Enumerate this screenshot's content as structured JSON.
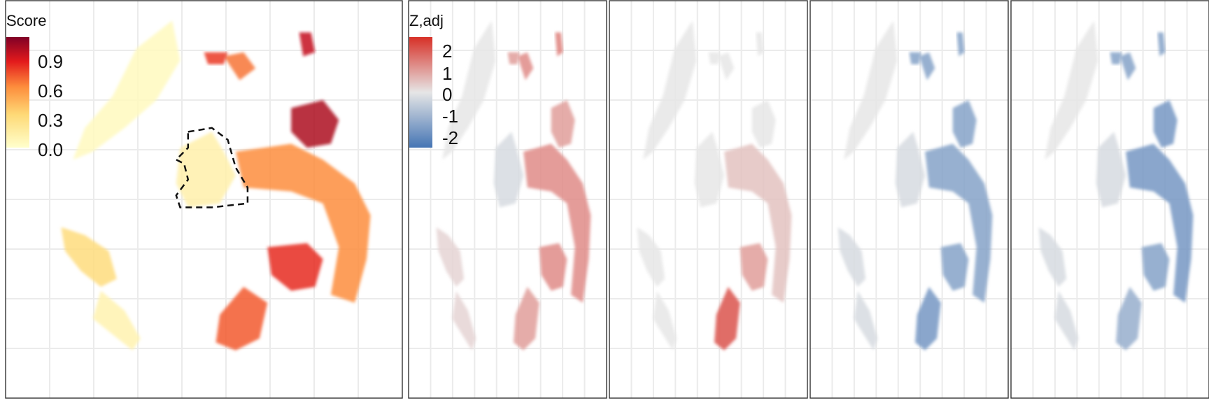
{
  "chart_data": [
    {
      "type": "scatter",
      "panel": 1,
      "title": "",
      "xlabel": "",
      "ylabel": "",
      "grid": true,
      "legend": {
        "title": "Score",
        "position": "top-left",
        "ticks": [
          "0.9",
          "0.6",
          "0.3",
          "0.0"
        ],
        "tick_values": [
          0.9,
          0.6,
          0.3,
          0.0
        ],
        "range": [
          0,
          1
        ],
        "colors": [
          "#ffffcc",
          "#fed976",
          "#fd8d3c",
          "#e31a1c",
          "#800026"
        ]
      },
      "annotation": "dashed outline around low-score region",
      "clusters": [
        {
          "name": "",
          "score": 0.05
        },
        {
          "name": "",
          "score": 0.28
        },
        {
          "name": "",
          "score": 0.1
        },
        {
          "name": "",
          "score": 0.12
        },
        {
          "name": "",
          "score": 0.55
        },
        {
          "name": "",
          "score": 0.9
        },
        {
          "name": "",
          "score": 0.75
        },
        {
          "name": "",
          "score": 0.65
        },
        {
          "name": "",
          "score": 0.6
        },
        {
          "name": "",
          "score": 0.85
        },
        {
          "name": "",
          "score": 0.72
        }
      ]
    },
    {
      "type": "scatter",
      "panel": 2,
      "grid": true,
      "legend": {
        "title": "Z,adj",
        "position": "top-left",
        "ticks": [
          "2",
          "1",
          "0",
          "-1",
          "-2"
        ],
        "tick_values": [
          2,
          1,
          0,
          -1,
          -2
        ],
        "range": [
          -2.5,
          2.5
        ],
        "colors": [
          "#4575b4",
          "#e6e6e6",
          "#d73027"
        ]
      },
      "color_scale": "diverging"
    },
    {
      "type": "scatter",
      "panel": 3,
      "grid": true,
      "color_scale": "diverging"
    },
    {
      "type": "scatter",
      "panel": 4,
      "grid": true,
      "color_scale": "diverging"
    },
    {
      "type": "scatter",
      "panel": 5,
      "grid": true,
      "color_scale": "diverging"
    }
  ]
}
